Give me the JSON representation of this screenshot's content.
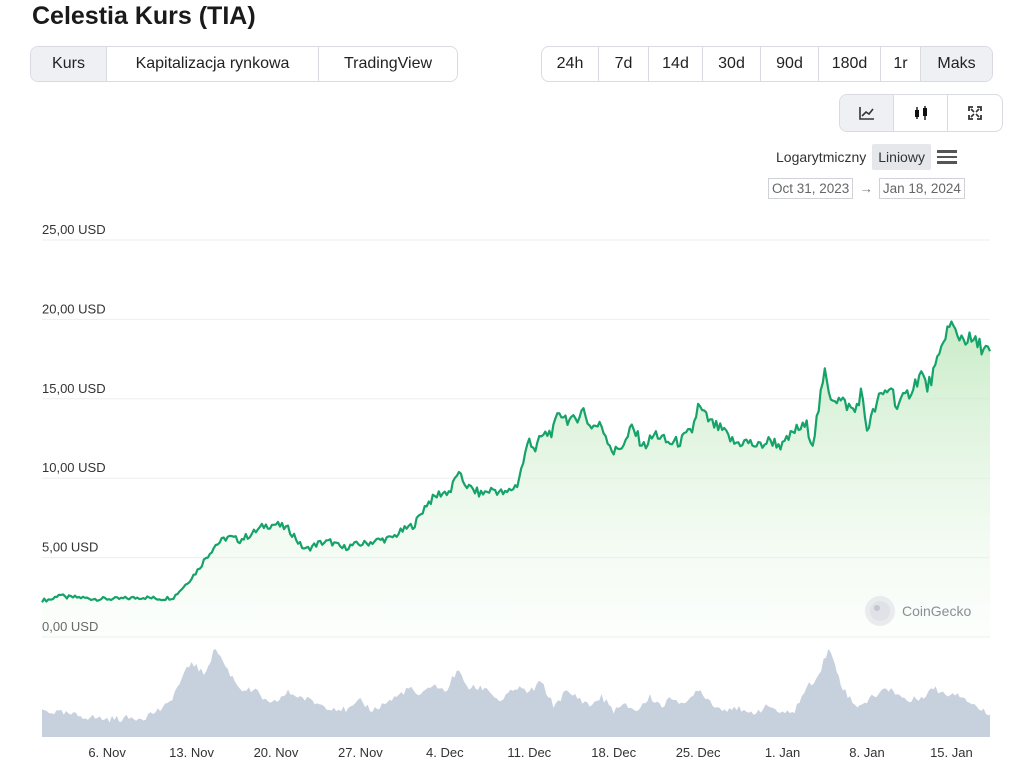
{
  "title": "Celestia Kurs (TIA)",
  "view_tabs": [
    "Kurs",
    "Kapitalizacja rynkowa",
    "TradingView"
  ],
  "view_active": 0,
  "ranges": [
    "24h",
    "7d",
    "14d",
    "30d",
    "90d",
    "180d",
    "1r",
    "Maks"
  ],
  "range_active": 7,
  "chart_types": [
    "line-chart-icon",
    "candlestick-icon",
    "fullscreen-icon"
  ],
  "scale": {
    "log_label": "Logarytmiczny",
    "linear_label": "Liniowy",
    "active": "linear"
  },
  "date_range": {
    "from": "Oct 31, 2023",
    "arrow": "→",
    "to": "Jan 18, 2024"
  },
  "watermark": "CoinGecko",
  "colors": {
    "line": "#16a36a",
    "fill": "#d8f2d4",
    "volume": "#c7d0dd",
    "grid": "#eceef1"
  },
  "chart_data": {
    "type": "area",
    "ylim": [
      0,
      25
    ],
    "yticks": [
      "0,00 USD",
      "5,00 USD",
      "10,00 USD",
      "15,00 USD",
      "20,00 USD",
      "25,00 USD"
    ],
    "ytick_values": [
      0,
      5,
      10,
      15,
      20,
      25
    ],
    "xticks": [
      "6. Nov",
      "13. Nov",
      "20. Nov",
      "27. Nov",
      "4. Dec",
      "11. Dec",
      "18. Dec",
      "25. Dec",
      "1. Jan",
      "8. Jan",
      "15. Jan"
    ],
    "xtick_days": [
      6,
      13,
      20,
      27,
      34,
      41,
      48,
      55,
      62,
      69,
      76
    ],
    "xlim_days": [
      0.6,
      79.2
    ],
    "grid": true,
    "series": [
      {
        "values": [
          [
            0.6,
            2.3
          ],
          [
            1.5,
            2.4
          ],
          [
            2.0,
            2.7
          ],
          [
            2.5,
            2.5
          ],
          [
            3.5,
            2.5
          ],
          [
            5.0,
            2.4
          ],
          [
            7.0,
            2.4
          ],
          [
            9.0,
            2.5
          ],
          [
            10.5,
            2.4
          ],
          [
            11.5,
            2.5
          ],
          [
            12.5,
            3.3
          ],
          [
            13.5,
            4.2
          ],
          [
            14.2,
            5.0
          ],
          [
            15.0,
            5.8
          ],
          [
            16.0,
            6.3
          ],
          [
            17.0,
            6.1
          ],
          [
            18.0,
            6.5
          ],
          [
            19.0,
            7.0
          ],
          [
            20.0,
            7.1
          ],
          [
            21.0,
            6.8
          ],
          [
            21.5,
            6.4
          ],
          [
            22.0,
            5.8
          ],
          [
            22.5,
            5.5
          ],
          [
            23.5,
            5.9
          ],
          [
            24.5,
            6.0
          ],
          [
            25.5,
            5.6
          ],
          [
            26.5,
            5.8
          ],
          [
            27.5,
            5.9
          ],
          [
            28.5,
            6.1
          ],
          [
            29.5,
            6.2
          ],
          [
            30.5,
            6.7
          ],
          [
            31.5,
            7.1
          ],
          [
            32.5,
            8.4
          ],
          [
            33.5,
            9.0
          ],
          [
            34.5,
            9.2
          ],
          [
            35.0,
            10.3
          ],
          [
            36.0,
            9.4
          ],
          [
            37.0,
            9.0
          ],
          [
            38.0,
            9.3
          ],
          [
            39.0,
            9.0
          ],
          [
            40.0,
            9.6
          ],
          [
            40.5,
            11.0
          ],
          [
            41.0,
            12.5
          ],
          [
            41.5,
            11.8
          ],
          [
            42.0,
            12.6
          ],
          [
            43.0,
            13.0
          ],
          [
            43.5,
            14.2
          ],
          [
            44.5,
            13.5
          ],
          [
            45.5,
            14.3
          ],
          [
            46.0,
            13.3
          ],
          [
            47.0,
            13.3
          ],
          [
            48.0,
            11.6
          ],
          [
            49.0,
            12.3
          ],
          [
            49.5,
            13.2
          ],
          [
            50.5,
            12.0
          ],
          [
            51.5,
            12.8
          ],
          [
            52.5,
            12.2
          ],
          [
            53.5,
            12.3
          ],
          [
            54.5,
            13.0
          ],
          [
            55.0,
            14.5
          ],
          [
            56.0,
            13.5
          ],
          [
            57.0,
            13.0
          ],
          [
            58.0,
            12.2
          ],
          [
            59.0,
            12.3
          ],
          [
            60.0,
            12.0
          ],
          [
            61.0,
            12.4
          ],
          [
            62.0,
            12.0
          ],
          [
            63.0,
            13.0
          ],
          [
            64.0,
            13.3
          ],
          [
            64.5,
            12.2
          ],
          [
            65.0,
            14.4
          ],
          [
            65.5,
            16.6
          ],
          [
            66.0,
            15.2
          ],
          [
            67.0,
            14.8
          ],
          [
            68.0,
            14.2
          ],
          [
            68.5,
            15.4
          ],
          [
            69.0,
            13.1
          ],
          [
            70.0,
            15.0
          ],
          [
            71.0,
            15.8
          ],
          [
            71.5,
            14.5
          ],
          [
            72.5,
            15.4
          ],
          [
            73.5,
            16.6
          ],
          [
            74.0,
            15.7
          ],
          [
            75.0,
            17.5
          ],
          [
            75.5,
            19.2
          ],
          [
            76.0,
            19.6
          ],
          [
            76.5,
            19.0
          ],
          [
            77.5,
            18.7
          ],
          [
            78.5,
            18.3
          ],
          [
            79.2,
            18.0
          ]
        ]
      }
    ],
    "volume": [
      [
        0.6,
        0.3
      ],
      [
        3.0,
        0.25
      ],
      [
        6.0,
        0.2
      ],
      [
        9.0,
        0.22
      ],
      [
        11.0,
        0.35
      ],
      [
        12.0,
        0.6
      ],
      [
        13.0,
        0.85
      ],
      [
        14.0,
        0.7
      ],
      [
        15.0,
        1.0
      ],
      [
        16.0,
        0.75
      ],
      [
        17.0,
        0.55
      ],
      [
        18.5,
        0.5
      ],
      [
        19.5,
        0.35
      ],
      [
        21.0,
        0.5
      ],
      [
        22.0,
        0.45
      ],
      [
        24.0,
        0.35
      ],
      [
        26.0,
        0.3
      ],
      [
        27.0,
        0.4
      ],
      [
        28.0,
        0.3
      ],
      [
        30.0,
        0.45
      ],
      [
        31.0,
        0.55
      ],
      [
        32.0,
        0.45
      ],
      [
        33.0,
        0.6
      ],
      [
        34.0,
        0.5
      ],
      [
        35.0,
        0.75
      ],
      [
        36.0,
        0.55
      ],
      [
        37.5,
        0.55
      ],
      [
        38.5,
        0.4
      ],
      [
        40.0,
        0.55
      ],
      [
        41.0,
        0.5
      ],
      [
        42.0,
        0.62
      ],
      [
        43.0,
        0.35
      ],
      [
        44.0,
        0.5
      ],
      [
        45.0,
        0.45
      ],
      [
        46.0,
        0.35
      ],
      [
        47.0,
        0.45
      ],
      [
        48.0,
        0.3
      ],
      [
        49.0,
        0.35
      ],
      [
        50.0,
        0.3
      ],
      [
        51.0,
        0.45
      ],
      [
        52.0,
        0.35
      ],
      [
        53.0,
        0.45
      ],
      [
        54.0,
        0.35
      ],
      [
        55.0,
        0.55
      ],
      [
        56.0,
        0.4
      ],
      [
        57.0,
        0.3
      ],
      [
        58.0,
        0.35
      ],
      [
        59.0,
        0.25
      ],
      [
        60.0,
        0.3
      ],
      [
        61.0,
        0.35
      ],
      [
        62.0,
        0.25
      ],
      [
        63.0,
        0.3
      ],
      [
        64.0,
        0.55
      ],
      [
        65.0,
        0.7
      ],
      [
        65.8,
        1.0
      ],
      [
        66.5,
        0.75
      ],
      [
        67.0,
        0.55
      ],
      [
        68.0,
        0.35
      ],
      [
        69.0,
        0.4
      ],
      [
        70.0,
        0.5
      ],
      [
        71.0,
        0.55
      ],
      [
        71.5,
        0.48
      ],
      [
        72.5,
        0.4
      ],
      [
        73.5,
        0.45
      ],
      [
        74.5,
        0.55
      ],
      [
        75.5,
        0.48
      ],
      [
        76.5,
        0.5
      ],
      [
        77.5,
        0.4
      ],
      [
        78.5,
        0.3
      ],
      [
        79.2,
        0.25
      ]
    ]
  }
}
